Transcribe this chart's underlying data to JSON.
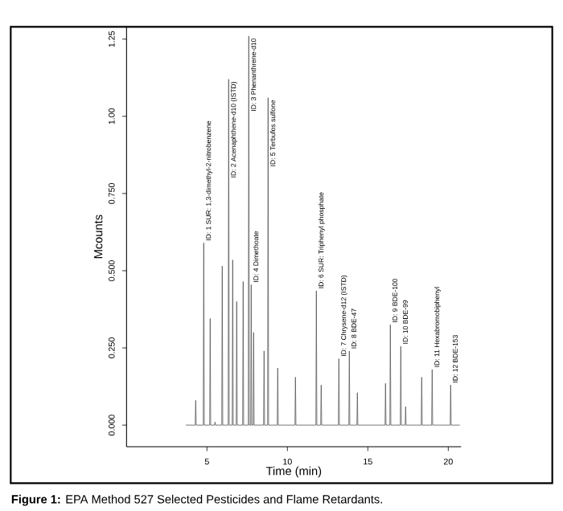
{
  "chart_data": {
    "type": "line",
    "xlabel": "Time (min)",
    "ylabel": "Mcounts",
    "color": "#555555",
    "x": [
      3.7,
      4.27,
      4.3,
      4.33,
      4.77,
      4.8,
      4.83,
      5.17,
      5.2,
      5.23,
      5.47,
      5.5,
      5.53,
      5.92,
      5.95,
      5.98,
      6.32,
      6.35,
      6.38,
      6.57,
      6.6,
      6.63,
      6.82,
      6.85,
      6.88,
      7.22,
      7.25,
      7.28,
      7.57,
      7.6,
      7.63,
      7.72,
      7.75,
      7.78,
      7.87,
      7.9,
      7.93,
      8.52,
      8.55,
      8.58,
      8.77,
      8.8,
      8.83,
      9.37,
      9.4,
      9.43,
      10.47,
      10.5,
      10.53,
      11.77,
      11.8,
      11.83,
      12.07,
      12.1,
      12.13,
      13.17,
      13.2,
      13.23,
      13.82,
      13.85,
      13.88,
      14.32,
      14.35,
      14.38,
      16.07,
      16.1,
      16.13,
      16.37,
      16.4,
      16.43,
      17.02,
      17.05,
      17.08,
      17.32,
      17.35,
      17.38,
      18.32,
      18.35,
      18.38,
      18.97,
      19.0,
      19.03,
      20.12,
      20.15,
      20.18,
      20.7
    ],
    "values": [
      0,
      0,
      0.08,
      0,
      0,
      0.59,
      0,
      0,
      0.345,
      0,
      0,
      0.01,
      0,
      0,
      0.515,
      0,
      0,
      1.12,
      0,
      0,
      0.535,
      0,
      0,
      0.4,
      0,
      0,
      0.465,
      0,
      0,
      1.26,
      0,
      0,
      0.455,
      0,
      0,
      0.3,
      0,
      0,
      0.24,
      0,
      0,
      1.06,
      0,
      0,
      0.185,
      0,
      0,
      0.155,
      0,
      0,
      0.435,
      0,
      0,
      0.13,
      0,
      0,
      0.215,
      0,
      0,
      0.24,
      0,
      0,
      0.105,
      0,
      0,
      0.135,
      0,
      0,
      0.325,
      0,
      0,
      0.255,
      0,
      0,
      0.06,
      0,
      0,
      0.155,
      0,
      0,
      0.18,
      0,
      0,
      0.13,
      0,
      0
    ],
    "xlim": [
      0,
      20.8
    ],
    "ylim": [
      -0.07,
      1.29
    ],
    "xticks": [
      5,
      10,
      15,
      20
    ],
    "yticks": [
      {
        "value": 0,
        "label": "0.000"
      },
      {
        "value": 0.25,
        "label": "0.250"
      },
      {
        "value": 0.5,
        "label": "0.500"
      },
      {
        "value": 0.75,
        "label": "0.750"
      },
      {
        "value": 1,
        "label": "1.00"
      },
      1.25
    ],
    "annotations": [
      {
        "text": "ID: 1 SUR: 1,3-dimethyl-2-nitrobenzene",
        "x": 4.8,
        "y": 0.59
      },
      {
        "text": "ID: 2 Acenaphthene-d10 (ISTD)",
        "x": 6.35,
        "y": 1.12
      },
      {
        "text": "ID: 3 Phenanthrene-d10",
        "x": 7.6,
        "y": 1.26
      },
      {
        "text": "ID: 4 Dimethoate",
        "x": 7.75,
        "y": 0.455
      },
      {
        "text": "ID: 5 Terbufos sulfone",
        "x": 8.8,
        "y": 1.06
      },
      {
        "text": "ID: 6 SUR: Triphenyl phosphate",
        "x": 11.8,
        "y": 0.435
      },
      {
        "text": "ID: 7 Chrysene-d12 (ISTD)",
        "x": 13.2,
        "y": 0.215
      },
      {
        "text": "ID: 8 BDE-47",
        "x": 13.85,
        "y": 0.24
      },
      {
        "text": "ID: 9 BDE-100",
        "x": 16.4,
        "y": 0.325
      },
      {
        "text": "ID: 10 BDE-99",
        "x": 17.05,
        "y": 0.255
      },
      {
        "text": "ID: 11 Hexabromobiphenyl",
        "x": 19.0,
        "y": 0.18
      },
      {
        "text": "ID: 12 BDE-153",
        "x": 20.15,
        "y": 0.13
      },
      "**Figure 1:** EPA Method 527 Selected Pesticides and Flame Retardants."
    ]
  }
}
